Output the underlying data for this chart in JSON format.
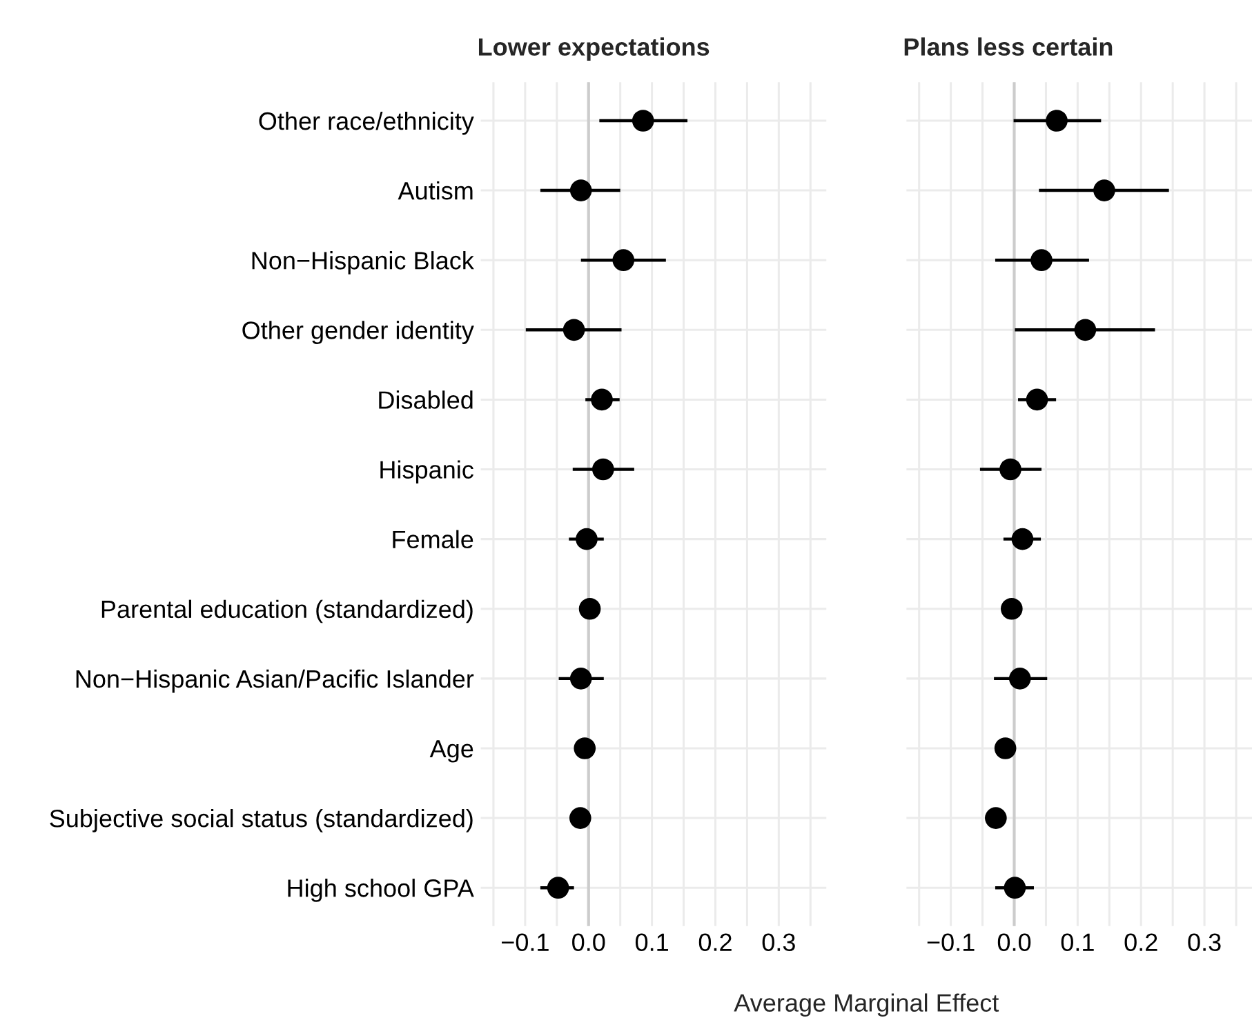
{
  "chart_data": [
    {
      "type": "scatter",
      "title": "Lower expectations",
      "xlabel": "Average Marginal Effect",
      "orientation": "horizontal",
      "categories": [
        "Other race/ethnicity",
        "Autism",
        "Non−Hispanic Black",
        "Other gender identity",
        "Disabled",
        "Hispanic",
        "Female",
        "Parental education (standardized)",
        "Non−Hispanic Asian/Pacific Islander",
        "Age",
        "Subjective social status (standardized)",
        "High school GPA"
      ],
      "series": [
        {
          "color": "#000000",
          "values": [
            0.086,
            -0.012,
            0.055,
            -0.023,
            0.021,
            0.023,
            -0.003,
            0.002,
            -0.012,
            -0.006,
            -0.013,
            -0.048
          ],
          "errors": [
            [
              0.017,
              0.156
            ],
            [
              -0.076,
              0.05
            ],
            [
              -0.012,
              0.122
            ],
            [
              -0.099,
              0.052
            ],
            [
              -0.005,
              0.049
            ],
            [
              -0.025,
              0.072
            ],
            [
              -0.031,
              0.024
            ],
            null,
            [
              -0.047,
              0.024
            ],
            null,
            null,
            [
              -0.076,
              -0.023
            ]
          ]
        }
      ],
      "xlim": [
        -0.17,
        0.375
      ],
      "xticks": [
        {
          "value": -0.1,
          "label": "−0.1"
        },
        {
          "value": 0.0,
          "label": "0.0"
        },
        {
          "value": 0.1,
          "label": "0.1"
        },
        {
          "value": 0.2,
          "label": "0.2"
        },
        {
          "value": 0.3,
          "label": "0.3"
        }
      ],
      "ref_lines": [
        {
          "axis": "x",
          "value": 0,
          "color": "#cccccc"
        }
      ],
      "grid": true,
      "marker": "circle"
    },
    {
      "type": "scatter",
      "title": "Plans less certain",
      "orientation": "horizontal",
      "tick_labels": "x",
      "series": [
        {
          "color": "#000000",
          "values": [
            0.067,
            0.142,
            0.043,
            0.112,
            0.036,
            -0.006,
            0.013,
            -0.004,
            0.009,
            -0.014,
            -0.029,
            0.001
          ],
          "errors": [
            [
              -0.001,
              0.137
            ],
            [
              0.039,
              0.244
            ],
            [
              -0.03,
              0.118
            ],
            [
              0.001,
              0.222
            ],
            [
              0.006,
              0.066
            ],
            [
              -0.054,
              0.043
            ],
            [
              -0.017,
              0.042
            ],
            null,
            [
              -0.032,
              0.052
            ],
            null,
            null,
            [
              -0.03,
              0.031
            ]
          ]
        }
      ],
      "xlim": [
        -0.17,
        0.375
      ],
      "xticks": [
        {
          "value": -0.1,
          "label": "−0.1"
        },
        {
          "value": 0.0,
          "label": "0.0"
        },
        {
          "value": 0.1,
          "label": "0.1"
        },
        {
          "value": 0.2,
          "label": "0.2"
        },
        {
          "value": 0.3,
          "label": "0.3"
        }
      ],
      "ref_lines": [
        {
          "axis": "x",
          "value": 0,
          "color": "#cccccc"
        }
      ],
      "grid": true,
      "marker": "circle"
    }
  ]
}
